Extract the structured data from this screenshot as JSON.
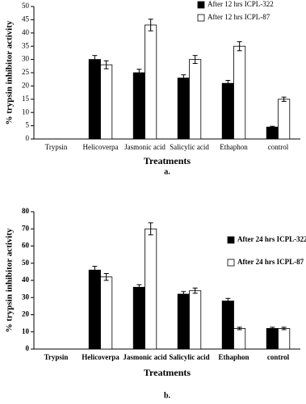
{
  "chart_data": [
    {
      "type": "bar",
      "y_label": "% trypsin inhibitor activity",
      "x_label": "Treatments",
      "caption": "a.",
      "categories": [
        "Trypsin",
        "Helicoverpa",
        "Jasmonic acid",
        "Salicylic acid",
        "Ethaphon",
        "control"
      ],
      "series": [
        {
          "name": "After 12 hrs ICPL-322",
          "color": "#000000",
          "values": [
            0,
            30,
            25,
            23,
            21,
            4.5
          ],
          "errors": [
            null,
            1.5,
            1.3,
            1.2,
            1.1,
            0.3
          ]
        },
        {
          "name": "After 12 hrs ICPL-87",
          "color": "#ffffff",
          "values": [
            0,
            28,
            43,
            30,
            35,
            15
          ],
          "errors": [
            null,
            1.5,
            2.2,
            1.5,
            1.7,
            0.8
          ]
        }
      ],
      "ylim": [
        0,
        50
      ],
      "yticks": [
        0,
        5,
        10,
        15,
        20,
        25,
        30,
        35,
        40,
        45,
        50
      ]
    },
    {
      "type": "bar",
      "y_label": "% trypsin inhibitor activity",
      "x_label": "Treatments",
      "caption": "b.",
      "categories": [
        "Trypsin",
        "Helicoverpa",
        "Jasmonic acid",
        "Salicylic acid",
        "Ethaphon",
        "control"
      ],
      "series": [
        {
          "name": "After 24 hrs ICPL-322",
          "color": "#000000",
          "values": [
            0,
            46,
            36,
            32,
            28,
            12
          ],
          "errors": [
            null,
            2.2,
            1.5,
            1.5,
            1.5,
            0.7
          ]
        },
        {
          "name": "After 24 hrs ICPL-87",
          "color": "#ffffff",
          "values": [
            0,
            42,
            70,
            34,
            12,
            12
          ],
          "errors": [
            null,
            2,
            3.5,
            1.5,
            0.7,
            0.7
          ]
        }
      ],
      "ylim": [
        0,
        80
      ],
      "yticks": [
        0,
        10,
        20,
        30,
        40,
        50,
        60,
        70,
        80
      ]
    }
  ]
}
